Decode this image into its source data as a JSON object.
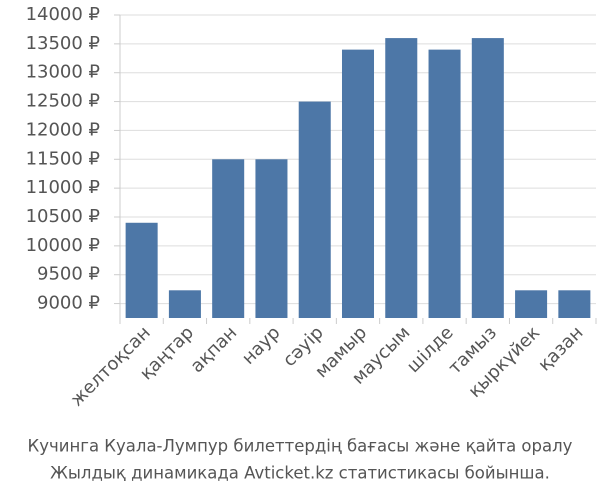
{
  "chart_data": {
    "type": "bar",
    "categories": [
      "желтоқсан",
      "қаңтар",
      "ақпан",
      "наур",
      "сәуір",
      "мамыр",
      "маусым",
      "шілде",
      "тамыз",
      "қыркүйек",
      "қазан"
    ],
    "values": [
      10400,
      9230,
      11500,
      11500,
      12500,
      13400,
      13600,
      13400,
      13600,
      9230,
      9230
    ],
    "color": "#4d77a7",
    "ylim": [
      8750,
      14000
    ],
    "yticks": [
      {
        "value": 9000,
        "label": "9000 ₽"
      },
      {
        "value": 9500,
        "label": "9500 ₽"
      },
      {
        "value": 10000,
        "label": "10000 ₽"
      },
      {
        "value": 10500,
        "label": "10500 ₽"
      },
      {
        "value": 11000,
        "label": "11000 ₽"
      },
      {
        "value": 11500,
        "label": "11500 ₽"
      },
      {
        "value": 12000,
        "label": "12000 ₽"
      },
      {
        "value": 12500,
        "label": "12500 ₽"
      },
      {
        "value": 13000,
        "label": "13000 ₽"
      },
      {
        "value": 13500,
        "label": "13500 ₽"
      },
      {
        "value": 14000,
        "label": "14000 ₽"
      }
    ],
    "grid": true,
    "caption": [
      "Кучинга Куала-Лумпур билеттердің бағасы және қайта оралу",
      "Жылдық динамикада Avticket.kz статистикасы бойынша."
    ]
  }
}
